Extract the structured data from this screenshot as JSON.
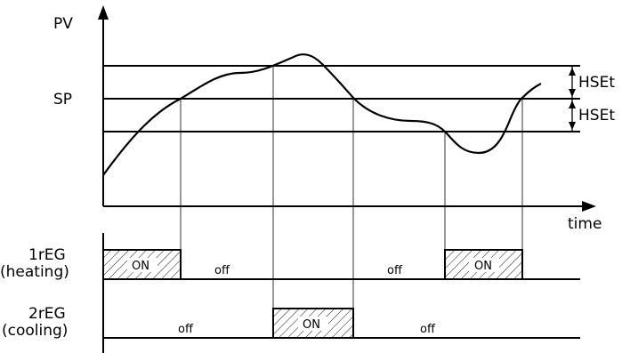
{
  "axes": {
    "y_label": "PV",
    "x_label": "time"
  },
  "setpoint": {
    "label": "SP"
  },
  "hysteresis": {
    "upper_label": "HSEt",
    "lower_label": "HSEt"
  },
  "outputs": {
    "heating": {
      "name": "1rEG",
      "role": "(heating)",
      "on_label_1": "ON",
      "on_label_2": "ON",
      "off_label_1": "off",
      "off_label_2": "off"
    },
    "cooling": {
      "name": "2rEG",
      "role": "(cooling)",
      "on_label": "ON",
      "off_label_1": "off",
      "off_label_2": "off"
    }
  },
  "colors": {
    "ink": "#000000",
    "background": "#ffffff"
  }
}
